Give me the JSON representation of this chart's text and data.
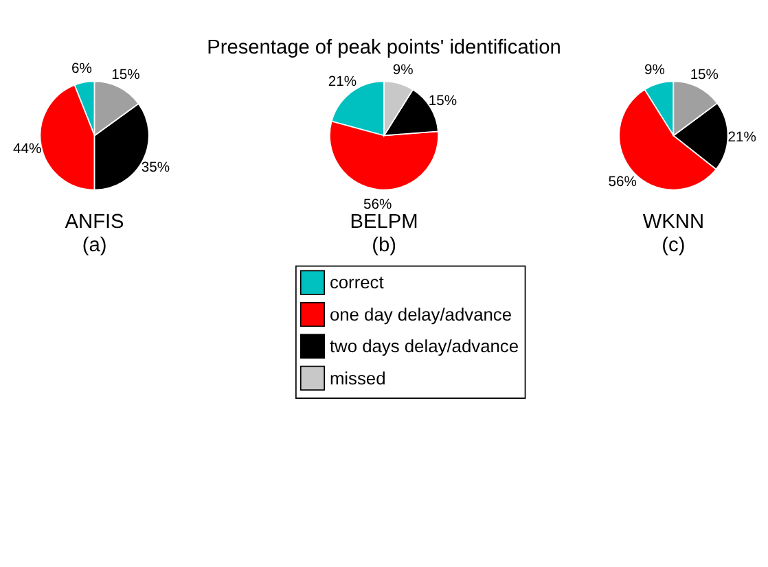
{
  "chart_data": [
    {
      "type": "pie",
      "xlabel": "ANFIS",
      "annotations": [
        "(a)"
      ],
      "categories": [
        null,
        null,
        null,
        null
      ],
      "values": [
        6,
        44,
        35,
        15
      ],
      "value_labels": [
        "6%",
        "44%",
        "35%",
        "15%"
      ],
      "colors": [
        "#00c0c0",
        "#ff0000",
        "#000000",
        "#a0a0a0"
      ]
    },
    {
      "type": "pie",
      "title": "Presentage of peak points' identification",
      "xlabel": "BELPM",
      "annotations": [
        "(b)"
      ],
      "legend": "bottom",
      "categories": [
        "correct",
        "one day delay/advance",
        "two days delay/advance",
        "missed"
      ],
      "values": [
        21,
        56,
        15,
        9
      ],
      "value_labels": [
        "21%",
        "56%",
        "15%",
        "9%"
      ],
      "colors": [
        "#00c0c0",
        "#ff0000",
        "#000000",
        "#c8c8c8"
      ]
    },
    {
      "type": "pie",
      "xlabel": "WKNN",
      "annotations": [
        "(c)"
      ],
      "categories": [
        null,
        null,
        null,
        null
      ],
      "values": [
        9,
        56,
        21,
        15
      ],
      "value_labels": [
        "9%",
        "56%",
        "21%",
        "15%"
      ],
      "colors": [
        "#00c0c0",
        "#ff0000",
        "#000000",
        "#a0a0a0"
      ]
    }
  ]
}
